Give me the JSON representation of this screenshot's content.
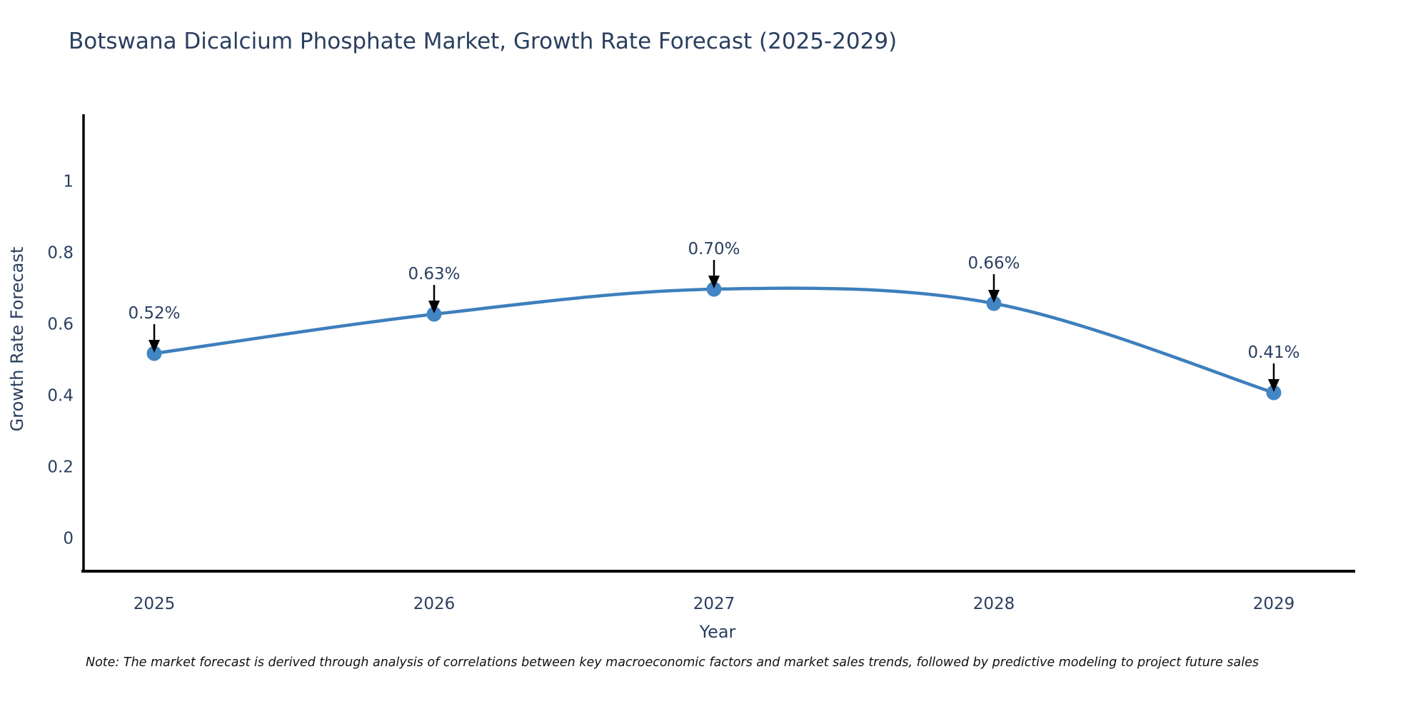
{
  "note": "Note: The market forecast is derived through analysis of correlations between key macroeconomic factors and market sales trends, followed by predictive modeling to project future sales",
  "chart_data": {
    "type": "line",
    "title": "Botswana Dicalcium Phosphate Market, Growth Rate Forecast (2025-2029)",
    "xlabel": "Year",
    "ylabel": "Growth Rate Forecast",
    "categories": [
      "2025",
      "2026",
      "2027",
      "2028",
      "2029"
    ],
    "values": [
      0.52,
      0.63,
      0.7,
      0.66,
      0.41
    ],
    "point_labels": [
      "0.52%",
      "0.63%",
      "0.70%",
      "0.66%",
      "0.41%"
    ],
    "yticks": [
      0,
      0.2,
      0.4,
      0.6,
      0.8,
      1
    ],
    "ytick_labels": [
      "0",
      "0.2",
      "0.4",
      "0.6",
      "0.8",
      "1"
    ],
    "ylim": [
      -0.09,
      1.19
    ],
    "grid": false,
    "legend": "none",
    "line_shape": "spline",
    "line_color": "#3d7fbc",
    "marker_color": "#4286c3",
    "axis_color": "#000000",
    "text_color": "#2a3f5f",
    "annotation_color": "#2a3f5f",
    "arrow_color": "#000000"
  }
}
